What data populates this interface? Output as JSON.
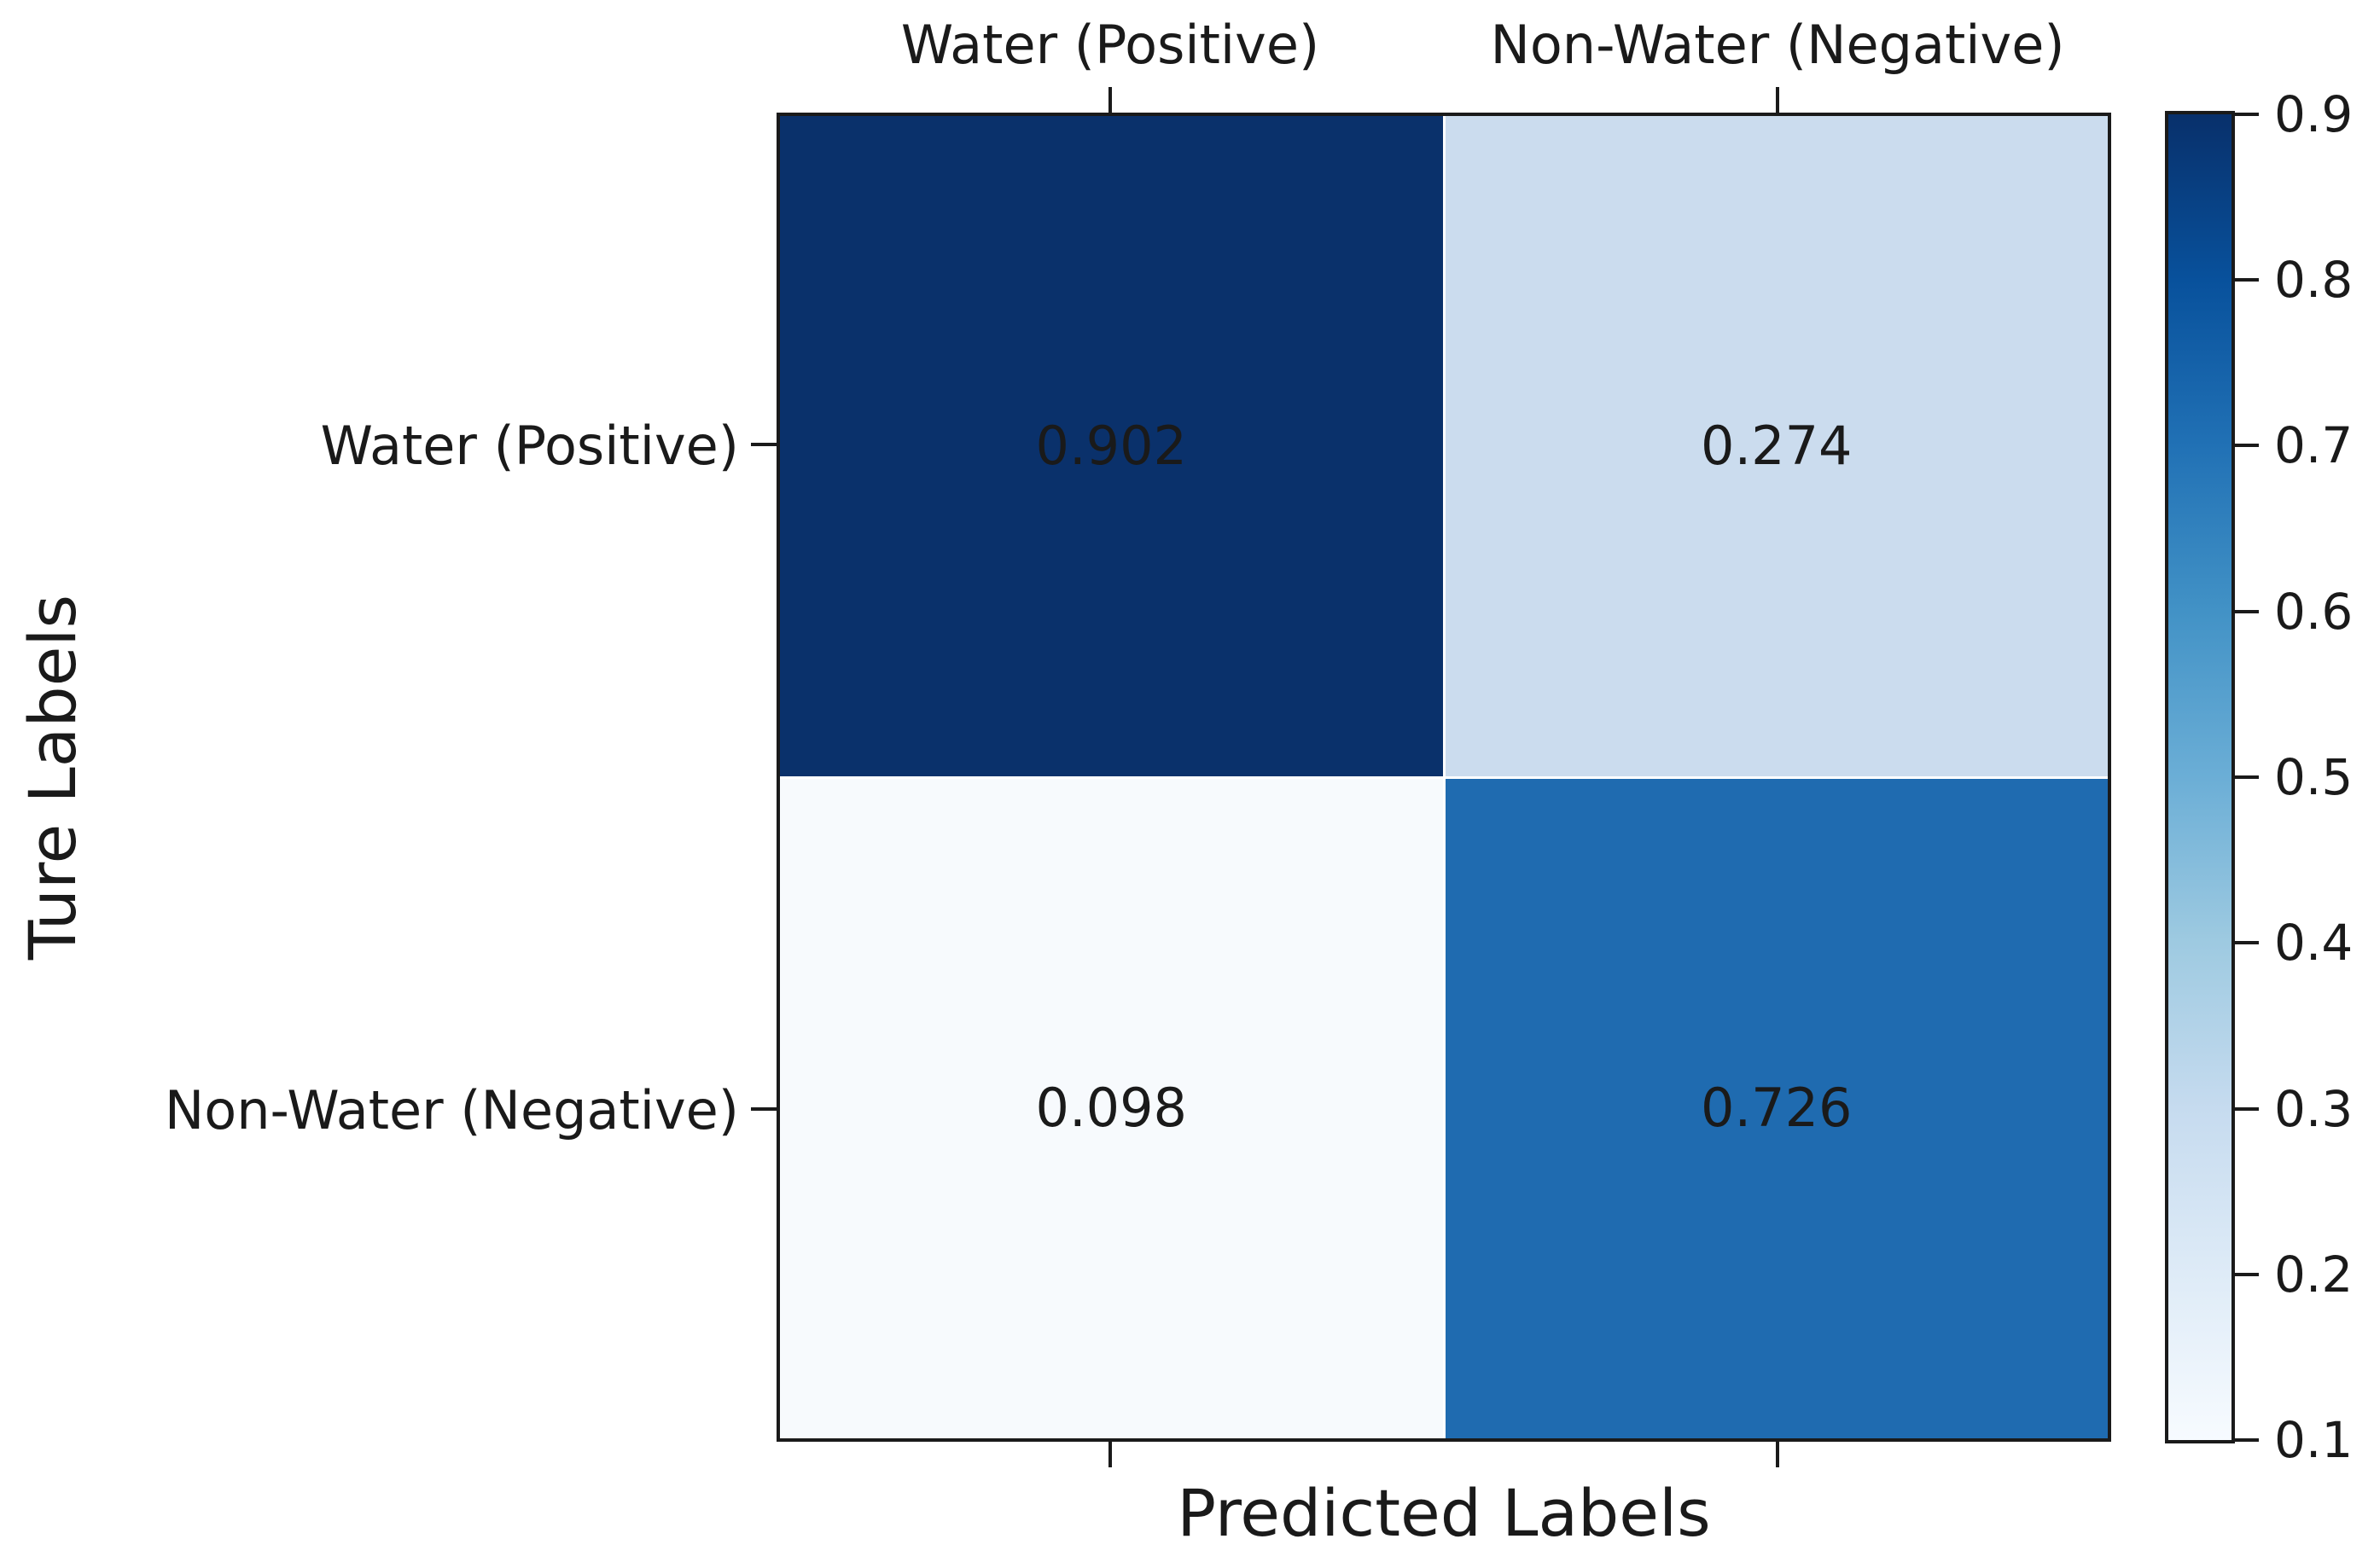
{
  "chart_data": {
    "type": "heatmap",
    "title": "",
    "xlabel": "Predicted Labels",
    "ylabel": "Ture Labels",
    "x_categories": [
      "Water (Positive)",
      "Non-Water (Negative)"
    ],
    "y_categories": [
      "Water (Positive)",
      "Non-Water (Negative)"
    ],
    "values": [
      [
        0.902,
        0.274
      ],
      [
        0.098,
        0.726
      ]
    ],
    "cell_labels": [
      [
        "0.902",
        "0.274"
      ],
      [
        "0.098",
        "0.726"
      ]
    ],
    "cell_colors": [
      [
        "#0a316b",
        "#cbdcee"
      ],
      [
        "#f7fafd",
        "#1f6bb0"
      ]
    ],
    "annotation_text_color": "#1a1a1a",
    "spine_color": "#1a1a1a",
    "colormap": "Blues",
    "grid": false,
    "legend_position": "right-colorbar",
    "colorbar": {
      "vmin": 0.098,
      "vmax": 0.902,
      "tick_labels": [
        "0.9",
        "0.8",
        "0.7",
        "0.6",
        "0.5",
        "0.4",
        "0.3",
        "0.2",
        "0.1"
      ],
      "gradient_stops_bottom_to_top": [
        "#f7fbff",
        "#deebf7",
        "#c6dbef",
        "#9ecae1",
        "#6baed6",
        "#4292c6",
        "#2171b5",
        "#08519c",
        "#08306b"
      ]
    }
  }
}
